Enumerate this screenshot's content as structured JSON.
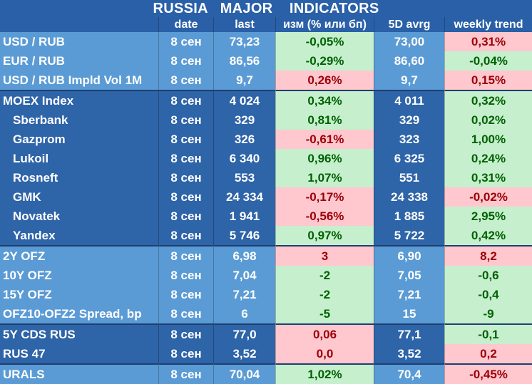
{
  "title": {
    "part1": "RUSSIA",
    "part2": "MAJOR",
    "part3": "INDICATORS"
  },
  "headers": [
    "",
    "date",
    "last",
    "изм (% или бп)",
    "5D avrg",
    "weekly trend"
  ],
  "colors": {
    "positive_bg": "#c6efce",
    "positive_text": "#006100",
    "negative_bg": "#ffc7ce",
    "negative_text": "#9c0006"
  },
  "rows": [
    {
      "name": "USD / RUB",
      "date": "8 сен",
      "last": "73,23",
      "change": "-0,05%",
      "change_sign": "pos",
      "avg": "73,00",
      "trend": "0,31%",
      "trend_sign": "neg",
      "group": "g-light",
      "indent": false
    },
    {
      "name": "EUR / RUB",
      "date": "8 сен",
      "last": "86,56",
      "change": "-0,29%",
      "change_sign": "pos",
      "avg": "86,60",
      "trend": "-0,04%",
      "trend_sign": "pos",
      "group": "g-light",
      "indent": false
    },
    {
      "name": "USD / RUB Impld Vol 1M",
      "date": "8 сен",
      "last": "9,7",
      "change": "0,26%",
      "change_sign": "neg",
      "avg": "9,7",
      "trend": "0,15%",
      "trend_sign": "neg",
      "group": "g-light",
      "indent": false
    },
    {
      "name": "MOEX Index",
      "date": "8 сен",
      "last": "4 024",
      "change": "0,34%",
      "change_sign": "pos",
      "avg": "4 011",
      "trend": "0,32%",
      "trend_sign": "pos",
      "group": "g-dark",
      "indent": false,
      "sep": true
    },
    {
      "name": "Sberbank",
      "date": "8 сен",
      "last": "329",
      "change": "0,81%",
      "change_sign": "pos",
      "avg": "329",
      "trend": "0,02%",
      "trend_sign": "pos",
      "group": "g-dark",
      "indent": true
    },
    {
      "name": "Gazprom",
      "date": "8 сен",
      "last": "326",
      "change": "-0,61%",
      "change_sign": "neg",
      "avg": "323",
      "trend": "1,00%",
      "trend_sign": "pos",
      "group": "g-dark",
      "indent": true
    },
    {
      "name": "Lukoil",
      "date": "8 сен",
      "last": "6 340",
      "change": "0,96%",
      "change_sign": "pos",
      "avg": "6 325",
      "trend": "0,24%",
      "trend_sign": "pos",
      "group": "g-dark",
      "indent": true
    },
    {
      "name": "Rosneft",
      "date": "8 сен",
      "last": "553",
      "change": "1,07%",
      "change_sign": "pos",
      "avg": "551",
      "trend": "0,31%",
      "trend_sign": "pos",
      "group": "g-dark",
      "indent": true
    },
    {
      "name": "GMK",
      "date": "8 сен",
      "last": "24 334",
      "change": "-0,17%",
      "change_sign": "neg",
      "avg": "24 338",
      "trend": "-0,02%",
      "trend_sign": "neg",
      "group": "g-dark",
      "indent": true
    },
    {
      "name": "Novatek",
      "date": "8 сен",
      "last": "1 941",
      "change": "-0,56%",
      "change_sign": "neg",
      "avg": "1 885",
      "trend": "2,95%",
      "trend_sign": "pos",
      "group": "g-dark",
      "indent": true
    },
    {
      "name": "Yandex",
      "date": "8 сен",
      "last": "5 746",
      "change": "0,97%",
      "change_sign": "pos",
      "avg": "5 722",
      "trend": "0,42%",
      "trend_sign": "pos",
      "group": "g-dark",
      "indent": true
    },
    {
      "name": "2Y OFZ",
      "date": "8 сен",
      "last": "6,98",
      "change": "3",
      "change_sign": "neg",
      "avg": "6,90",
      "trend": "8,2",
      "trend_sign": "neg",
      "group": "g-light2",
      "indent": false,
      "sep": true
    },
    {
      "name": "10Y OFZ",
      "date": "8 сен",
      "last": "7,04",
      "change": "-2",
      "change_sign": "pos",
      "avg": "7,05",
      "trend": "-0,6",
      "trend_sign": "pos",
      "group": "g-light2",
      "indent": false
    },
    {
      "name": "15Y OFZ",
      "date": "8 сен",
      "last": "7,21",
      "change": "-2",
      "change_sign": "pos",
      "avg": "7,21",
      "trend": "-0,4",
      "trend_sign": "pos",
      "group": "g-light2",
      "indent": false
    },
    {
      "name": "OFZ10-OFZ2 Spread, bp",
      "date": "8 сен",
      "last": "6",
      "change": "-5",
      "change_sign": "pos",
      "avg": "15",
      "trend": "-9",
      "trend_sign": "pos",
      "group": "g-light2",
      "indent": false
    },
    {
      "name": "5Y CDS RUS",
      "date": "8 сен",
      "last": "77,0",
      "change": "0,06",
      "change_sign": "neg",
      "avg": "77,1",
      "trend": "-0,1",
      "trend_sign": "pos",
      "group": "g-dark2",
      "indent": false,
      "sep": true
    },
    {
      "name": "RUS 47",
      "date": "8 сен",
      "last": "3,52",
      "change": "0,0",
      "change_sign": "neg",
      "avg": "3,52",
      "trend": "0,2",
      "trend_sign": "neg",
      "group": "g-dark2",
      "indent": false
    },
    {
      "name": "URALS",
      "date": "8 сен",
      "last": "70,04",
      "change": "1,02%",
      "change_sign": "pos",
      "avg": "70,4",
      "trend": "-0,45%",
      "trend_sign": "neg",
      "group": "g-light3",
      "indent": false,
      "sep": true
    }
  ]
}
